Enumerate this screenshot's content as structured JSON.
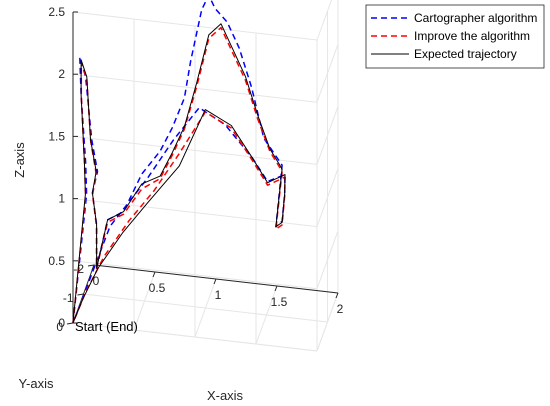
{
  "chart_data": {
    "type": "line",
    "view": "3d",
    "xlabel": "X-axis",
    "ylabel": "Y-axis",
    "zlabel": "Z-axis",
    "xlim": [
      0,
      2
    ],
    "ylim": [
      -2,
      0
    ],
    "zlim": [
      0,
      2.5
    ],
    "x_ticks": [
      "0",
      "0.5",
      "1",
      "1.5",
      "2"
    ],
    "y_ticks": [
      "0",
      "-1",
      "-2"
    ],
    "z_ticks": [
      "0",
      "0.5",
      "1",
      "1.5",
      "2",
      "2.5"
    ],
    "grid": true,
    "legend_position": "top-right",
    "annotation": "Start (End)",
    "colors": {
      "cartographer": "#0000ff",
      "improve": "#ff0000",
      "expected": "#000000",
      "axis": "#262626",
      "grid": "#e6e6e6"
    },
    "series": [
      {
        "name": "Cartographer algorithm",
        "style": "dashed",
        "points": [
          [
            0.0,
            0.0,
            0.0
          ],
          [
            0.06,
            -0.6,
            0.9
          ],
          [
            0.03,
            -0.85,
            1.1
          ],
          [
            -0.02,
            -1.0,
            1.6
          ],
          [
            -0.03,
            -1.0,
            1.9
          ],
          [
            0.0,
            -1.2,
            1.7
          ],
          [
            0.05,
            -1.2,
            1.2
          ],
          [
            0.08,
            -1.4,
            0.9
          ],
          [
            0.03,
            -1.5,
            0.7
          ],
          [
            0.03,
            -1.9,
            0.35
          ],
          [
            0.03,
            -1.9,
            0.0
          ],
          [
            0.12,
            -1.9,
            0.4
          ],
          [
            0.25,
            -1.9,
            0.48
          ],
          [
            0.4,
            -1.9,
            0.8
          ],
          [
            0.55,
            -1.9,
            1.0
          ],
          [
            0.65,
            -1.9,
            1.2
          ],
          [
            0.75,
            -1.9,
            1.45
          ],
          [
            0.8,
            -1.9,
            1.75
          ],
          [
            0.9,
            -1.8,
            2.2
          ],
          [
            0.95,
            -1.9,
            2.3
          ],
          [
            1.0,
            -1.9,
            2.2
          ],
          [
            1.1,
            -1.9,
            2.1
          ],
          [
            1.2,
            -1.9,
            1.9
          ],
          [
            1.3,
            -1.9,
            1.6
          ],
          [
            1.4,
            -1.9,
            1.2
          ],
          [
            1.55,
            -1.9,
            1.0
          ],
          [
            1.5,
            -1.9,
            0.5
          ],
          [
            1.55,
            -1.9,
            0.55
          ],
          [
            1.58,
            -1.8,
            0.8
          ],
          [
            1.6,
            -1.6,
            1.0
          ],
          [
            1.5,
            -1.1,
            1.05
          ],
          [
            1.4,
            -0.8,
            1.3
          ],
          [
            1.2,
            -0.55,
            1.6
          ],
          [
            1.0,
            -0.4,
            1.75
          ],
          [
            0.8,
            -0.25,
            1.5
          ],
          [
            0.6,
            -0.15,
            1.2
          ],
          [
            0.45,
            -0.1,
            1.0
          ],
          [
            0.3,
            -0.05,
            0.8
          ],
          [
            0.15,
            -0.02,
            0.4
          ],
          [
            0.0,
            0.0,
            0.0
          ]
        ]
      },
      {
        "name": "Improve the algorithm",
        "style": "dashed",
        "points": [
          [
            0.0,
            0.0,
            0.0
          ],
          [
            0.05,
            -0.62,
            0.88
          ],
          [
            0.02,
            -0.86,
            1.08
          ],
          [
            -0.02,
            -1.02,
            1.58
          ],
          [
            -0.02,
            -1.02,
            1.86
          ],
          [
            0.01,
            -1.2,
            1.68
          ],
          [
            0.04,
            -1.22,
            1.18
          ],
          [
            0.07,
            -1.4,
            0.88
          ],
          [
            0.03,
            -1.52,
            0.68
          ],
          [
            0.03,
            -1.9,
            0.33
          ],
          [
            0.03,
            -1.9,
            0.0
          ],
          [
            0.12,
            -1.9,
            0.38
          ],
          [
            0.25,
            -1.9,
            0.46
          ],
          [
            0.4,
            -1.9,
            0.68
          ],
          [
            0.55,
            -1.9,
            0.78
          ],
          [
            0.65,
            -1.9,
            0.98
          ],
          [
            0.75,
            -1.9,
            1.2
          ],
          [
            0.85,
            -1.9,
            1.55
          ],
          [
            0.95,
            -1.9,
            1.95
          ],
          [
            1.05,
            -1.9,
            2.05
          ],
          [
            1.15,
            -1.9,
            1.85
          ],
          [
            1.25,
            -1.9,
            1.65
          ],
          [
            1.35,
            -1.9,
            1.35
          ],
          [
            1.45,
            -1.9,
            1.1
          ],
          [
            1.55,
            -1.9,
            0.95
          ],
          [
            1.5,
            -1.9,
            0.48
          ],
          [
            1.55,
            -1.9,
            0.52
          ],
          [
            1.58,
            -1.8,
            0.78
          ],
          [
            1.6,
            -1.6,
            0.98
          ],
          [
            1.5,
            -1.1,
            1.02
          ],
          [
            1.4,
            -0.8,
            1.28
          ],
          [
            1.25,
            -0.55,
            1.58
          ],
          [
            1.05,
            -0.4,
            1.72
          ],
          [
            0.85,
            -0.25,
            1.4
          ],
          [
            0.65,
            -0.15,
            1.1
          ],
          [
            0.45,
            -0.1,
            0.85
          ],
          [
            0.25,
            -0.05,
            0.55
          ],
          [
            0.1,
            -0.02,
            0.25
          ],
          [
            0.0,
            0.0,
            0.0
          ]
        ]
      },
      {
        "name": "Expected trajectory",
        "style": "solid",
        "points": [
          [
            0.0,
            0.0,
            0.0
          ],
          [
            0.05,
            -0.6,
            0.9
          ],
          [
            0.02,
            -0.85,
            1.1
          ],
          [
            -0.02,
            -1.0,
            1.6
          ],
          [
            -0.02,
            -1.0,
            1.88
          ],
          [
            0.01,
            -1.2,
            1.7
          ],
          [
            0.04,
            -1.2,
            1.2
          ],
          [
            0.07,
            -1.4,
            0.9
          ],
          [
            0.03,
            -1.5,
            0.7
          ],
          [
            0.03,
            -1.9,
            0.35
          ],
          [
            0.03,
            -1.9,
            0.0
          ],
          [
            0.12,
            -1.9,
            0.4
          ],
          [
            0.25,
            -1.9,
            0.48
          ],
          [
            0.4,
            -1.9,
            0.72
          ],
          [
            0.55,
            -1.9,
            0.8
          ],
          [
            0.65,
            -1.9,
            1.0
          ],
          [
            0.75,
            -1.9,
            1.22
          ],
          [
            0.85,
            -1.9,
            1.58
          ],
          [
            0.95,
            -1.9,
            1.98
          ],
          [
            1.05,
            -1.9,
            2.08
          ],
          [
            1.15,
            -1.9,
            1.88
          ],
          [
            1.25,
            -1.9,
            1.68
          ],
          [
            1.35,
            -1.9,
            1.38
          ],
          [
            1.45,
            -1.9,
            1.12
          ],
          [
            1.55,
            -1.9,
            0.97
          ],
          [
            1.5,
            -1.9,
            0.5
          ],
          [
            1.55,
            -1.9,
            0.54
          ],
          [
            1.58,
            -1.8,
            0.8
          ],
          [
            1.6,
            -1.6,
            1.0
          ],
          [
            1.5,
            -1.1,
            1.04
          ],
          [
            1.4,
            -0.8,
            1.3
          ],
          [
            1.25,
            -0.55,
            1.6
          ],
          [
            1.05,
            -0.4,
            1.74
          ],
          [
            0.85,
            -0.25,
            1.3
          ],
          [
            0.6,
            -0.15,
            1.0
          ],
          [
            0.4,
            -0.1,
            0.75
          ],
          [
            0.2,
            -0.05,
            0.45
          ],
          [
            0.08,
            -0.02,
            0.2
          ],
          [
            0.0,
            0.0,
            0.0
          ]
        ]
      }
    ]
  }
}
